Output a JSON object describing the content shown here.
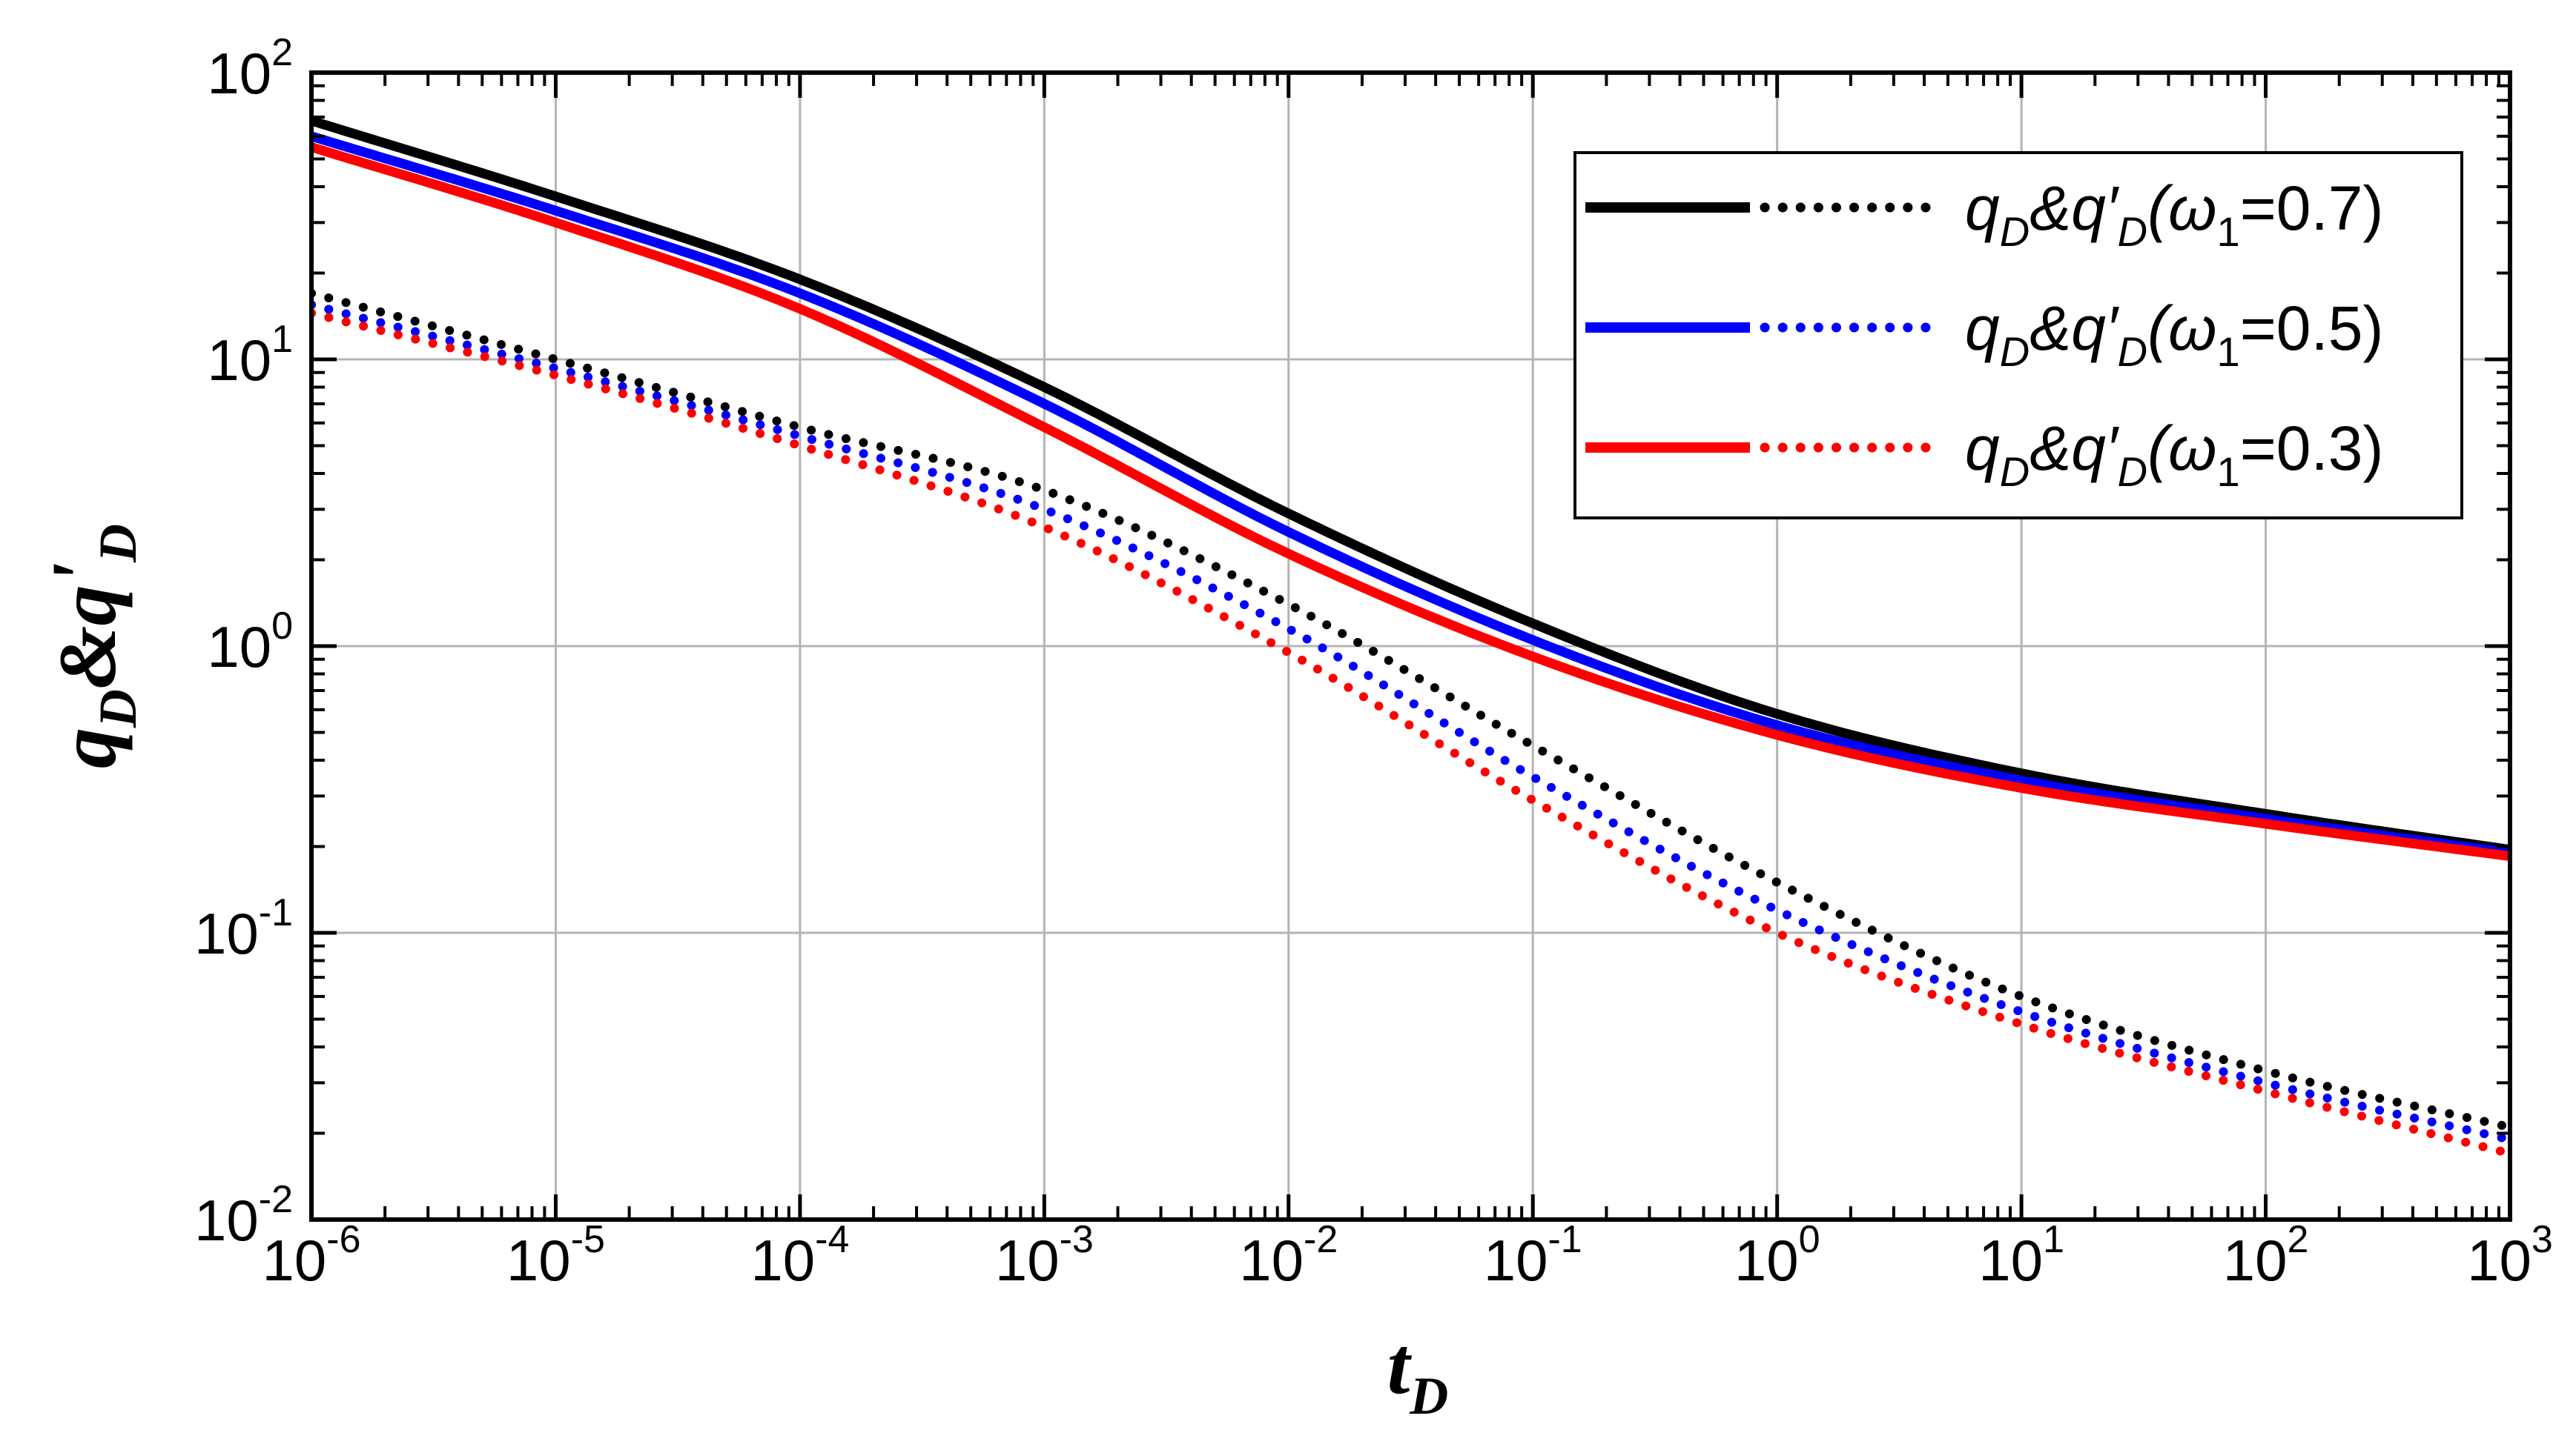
{
  "chart_data": {
    "type": "line",
    "xscale": "log",
    "yscale": "log",
    "xlim": [
      1e-06,
      1000
    ],
    "ylim": [
      0.01,
      100
    ],
    "grid": true,
    "xlabel": {
      "main": "t",
      "sub": "D"
    },
    "ylabel": {
      "main": "q",
      "sub": "D",
      "join": "&q",
      "prime": "'",
      "sub2": "D"
    },
    "x_ticks": [
      {
        "base": "10",
        "exp": "-6"
      },
      {
        "base": "10",
        "exp": "-5"
      },
      {
        "base": "10",
        "exp": "-4"
      },
      {
        "base": "10",
        "exp": "-3"
      },
      {
        "base": "10",
        "exp": "-2"
      },
      {
        "base": "10",
        "exp": "-1"
      },
      {
        "base": "10",
        "exp": "0"
      },
      {
        "base": "10",
        "exp": "1"
      },
      {
        "base": "10",
        "exp": "2"
      },
      {
        "base": "10",
        "exp": "3"
      }
    ],
    "y_ticks": [
      {
        "base": "10",
        "exp": "-2"
      },
      {
        "base": "10",
        "exp": "-1"
      },
      {
        "base": "10",
        "exp": "0"
      },
      {
        "base": "10",
        "exp": "1"
      },
      {
        "base": "10",
        "exp": "2"
      }
    ],
    "legend": {
      "position": "top-right",
      "entries": [
        {
          "q": "q",
          "sub": "D",
          "amp": "&q′",
          "sub2": "D",
          "paren": "(ω",
          "sub3": "1",
          "value": "=0.7)",
          "color": "#000000"
        },
        {
          "q": "q",
          "sub": "D",
          "amp": "&q′",
          "sub2": "D",
          "paren": "(ω",
          "sub3": "1",
          "value": "=0.5)",
          "color": "#0000ff"
        },
        {
          "q": "q",
          "sub": "D",
          "amp": "&q′",
          "sub2": "D",
          "paren": "(ω",
          "sub3": "1",
          "value": "=0.3)",
          "color": "#ff0000"
        }
      ]
    },
    "x": [
      1e-06,
      1e-05,
      0.0001,
      0.001,
      0.01,
      0.1,
      1,
      10,
      100,
      1000
    ],
    "series": [
      {
        "quantity": "qD",
        "style": "solid",
        "omega1": 0.7,
        "color": "#000000",
        "values": [
          68,
          37,
          19,
          8.0,
          2.9,
          1.2,
          0.58,
          0.36,
          0.26,
          0.195
        ]
      },
      {
        "quantity": "qD",
        "style": "solid",
        "omega1": 0.5,
        "color": "#0000ff",
        "values": [
          60,
          33,
          17,
          7.0,
          2.5,
          1.05,
          0.53,
          0.34,
          0.25,
          0.19
        ]
      },
      {
        "quantity": "qD",
        "style": "solid",
        "omega1": 0.3,
        "color": "#ff0000",
        "values": [
          55,
          30,
          15,
          5.8,
          2.1,
          0.92,
          0.49,
          0.32,
          0.24,
          0.185
        ]
      },
      {
        "quantity": "q'D",
        "style": "dotted",
        "omega1": 0.7,
        "color": "#000000",
        "values": [
          17,
          10,
          5.8,
          3.5,
          1.4,
          0.45,
          0.15,
          0.06,
          0.033,
          0.021
        ]
      },
      {
        "quantity": "q'D",
        "style": "dotted",
        "omega1": 0.5,
        "color": "#0000ff",
        "values": [
          15.5,
          9.3,
          5.4,
          3.0,
          1.15,
          0.35,
          0.12,
          0.053,
          0.03,
          0.019
        ]
      },
      {
        "quantity": "q'D",
        "style": "dotted",
        "omega1": 0.3,
        "color": "#ff0000",
        "values": [
          14.5,
          8.8,
          5.0,
          2.6,
          0.95,
          0.29,
          0.1,
          0.048,
          0.028,
          0.017
        ]
      }
    ]
  }
}
